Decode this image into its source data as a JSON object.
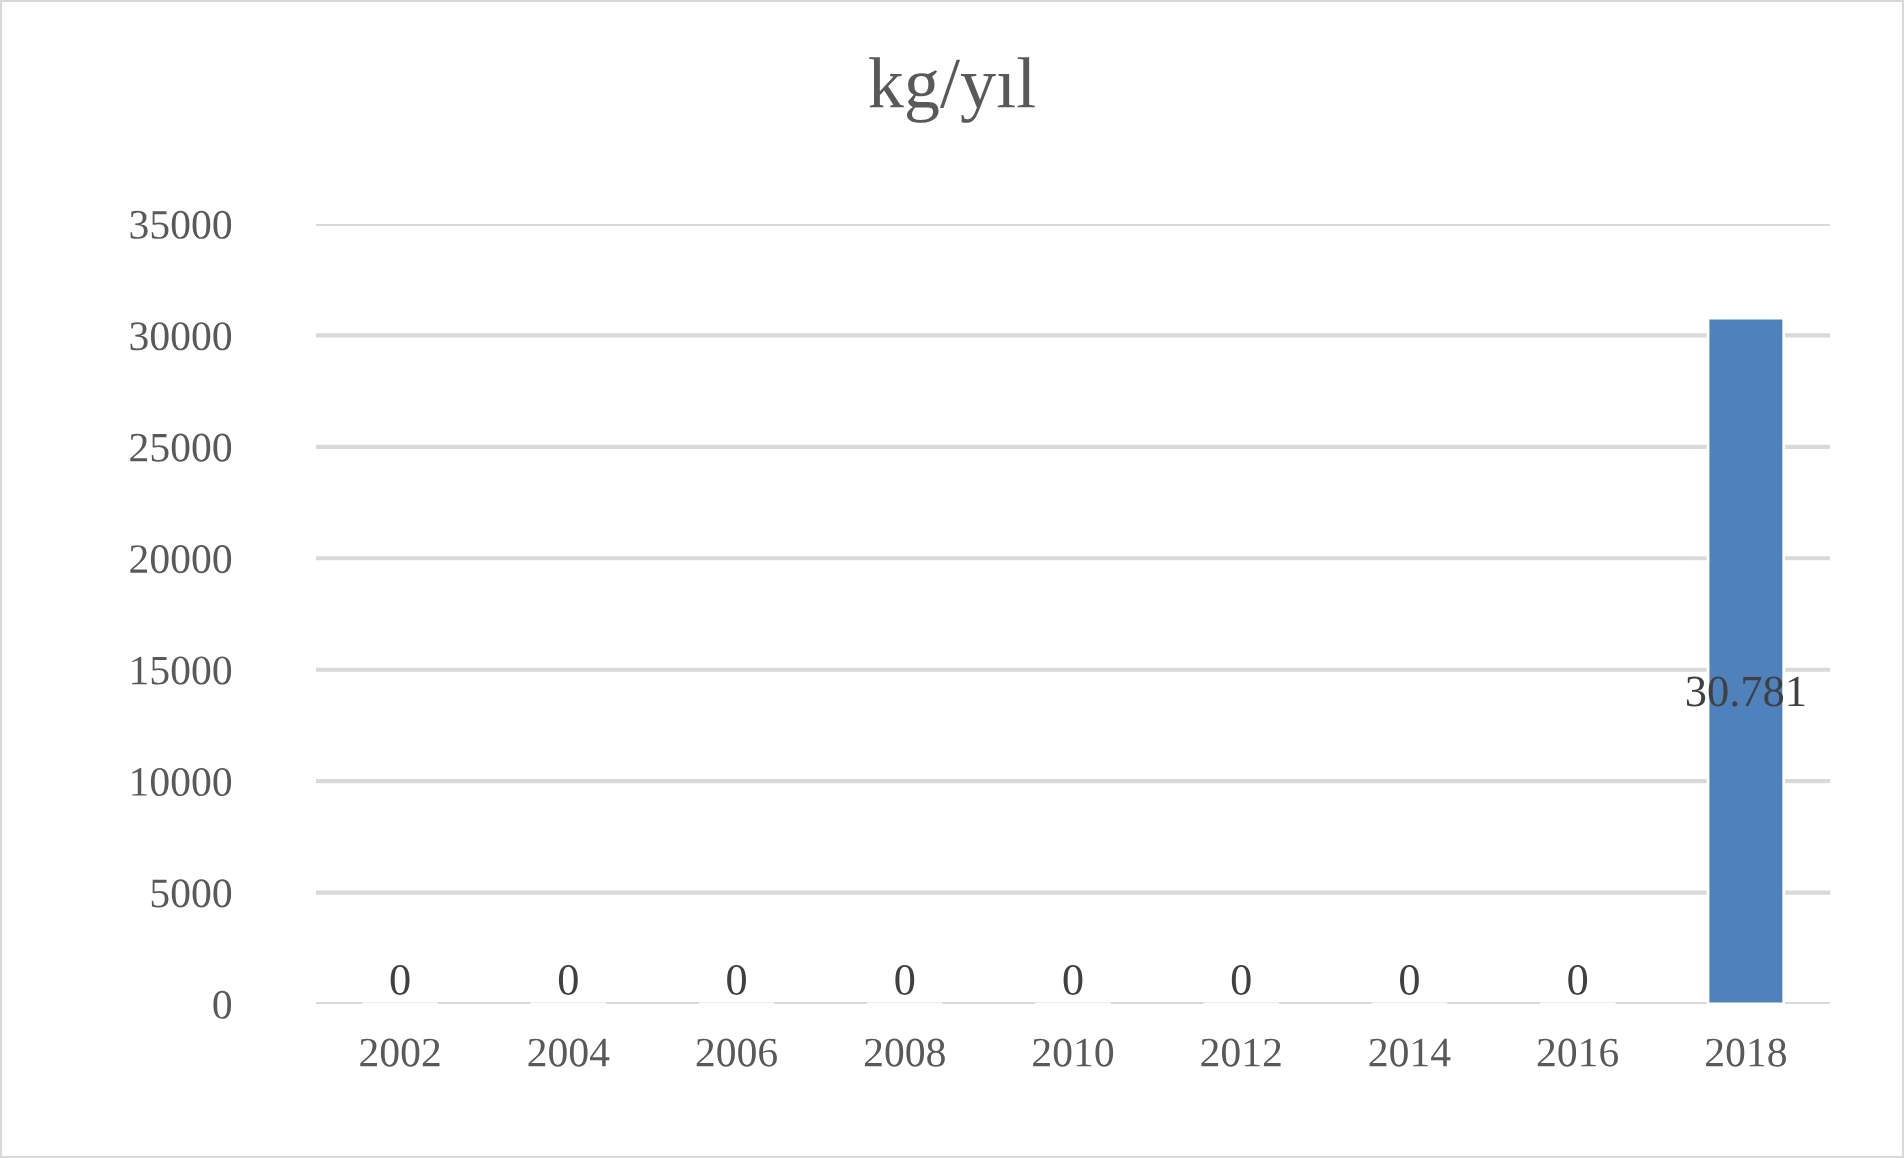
{
  "chart_data": {
    "type": "bar",
    "title": "kg/yıl",
    "categories": [
      "2002",
      "2004",
      "2006",
      "2008",
      "2010",
      "2012",
      "2014",
      "2016",
      "2018"
    ],
    "values": [
      0,
      0,
      0,
      0,
      0,
      0,
      0,
      0,
      30781
    ],
    "value_labels": [
      "0",
      "0",
      "0",
      "0",
      "0",
      "0",
      "0",
      "0",
      "30.781"
    ],
    "color": "#4f81bd",
    "ylim": [
      0,
      35000
    ],
    "yticks": [
      0,
      5000,
      10000,
      15000,
      20000,
      25000,
      30000,
      35000
    ],
    "grid": "y",
    "legend": false
  }
}
